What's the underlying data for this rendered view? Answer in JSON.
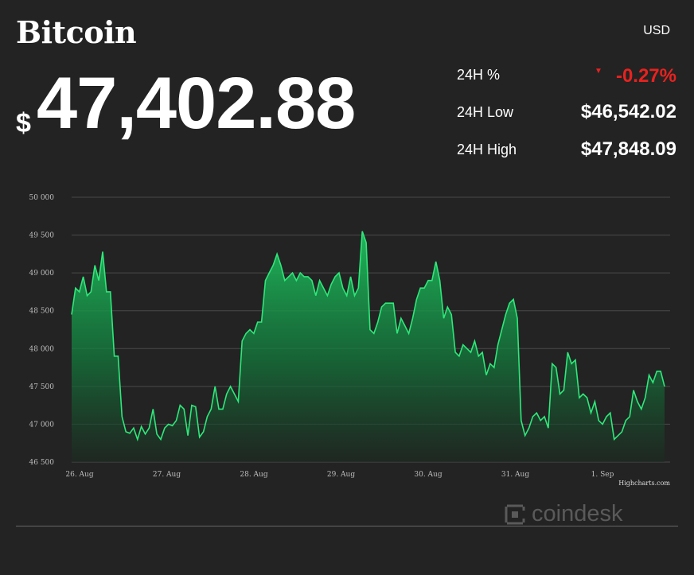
{
  "header": {
    "title": "Bitcoin",
    "currency": "USD",
    "dollar_sign": "$",
    "price": "47,402.88"
  },
  "stats": [
    {
      "label": "24H %",
      "value": "-0.27%",
      "trend": "down"
    },
    {
      "label": "24H Low",
      "value": "$46,542.02"
    },
    {
      "label": "24H High",
      "value": "$47,848.09"
    }
  ],
  "colors": {
    "background": "#232323",
    "line": "#2ee87a",
    "negative": "#e8221f"
  },
  "credit": "Highcharts.com",
  "brand": {
    "name": "coindesk",
    "icon": "coindesk-logo-icon"
  },
  "chart_data": {
    "type": "area",
    "ylim": [
      46500,
      50000
    ],
    "y_ticks": [
      "50 000",
      "49 500",
      "49 000",
      "48 500",
      "48 000",
      "47 500",
      "47 000",
      "46 500"
    ],
    "x_ticks": [
      "26. Aug",
      "27. Aug",
      "28. Aug",
      "29. Aug",
      "30. Aug",
      "31. Aug",
      "1. Sep"
    ],
    "series": [
      {
        "values": [
          48450,
          48800,
          48750,
          48950,
          48700,
          48750,
          49100,
          48900,
          49280,
          48750,
          48750,
          47900,
          47900,
          47100,
          46900,
          46880,
          46950,
          46800,
          46970,
          46870,
          46950,
          47200,
          46870,
          46800,
          46950,
          47000,
          46980,
          47050,
          47250,
          47200,
          46850,
          47250,
          47230,
          46830,
          46900,
          47100,
          47200,
          47500,
          47200,
          47200,
          47400,
          47500,
          47400,
          47300,
          48100,
          48200,
          48250,
          48200,
          48350,
          48350,
          48900,
          49000,
          49100,
          49250,
          49100,
          48900,
          48950,
          49000,
          48900,
          49000,
          48950,
          48950,
          48900,
          48700,
          48900,
          48800,
          48700,
          48850,
          48950,
          49000,
          48800,
          48700,
          48950,
          48700,
          48800,
          49550,
          49400,
          48250,
          48200,
          48350,
          48550,
          48600,
          48600,
          48600,
          48200,
          48400,
          48300,
          48200,
          48400,
          48650,
          48800,
          48800,
          48900,
          48900,
          49150,
          48900,
          48400,
          48550,
          48450,
          47950,
          47900,
          48050,
          48000,
          47950,
          48100,
          47900,
          47950,
          47650,
          47800,
          47750,
          48050,
          48250,
          48450,
          48600,
          48650,
          48400,
          47050,
          46850,
          46950,
          47100,
          47150,
          47050,
          47100,
          46950,
          47800,
          47750,
          47400,
          47450,
          47950,
          47800,
          47850,
          47350,
          47400,
          47350,
          47150,
          47300,
          47050,
          47000,
          47100,
          47150,
          46800,
          46850,
          46900,
          47050,
          47100,
          47450,
          47300,
          47200,
          47350,
          47650,
          47550,
          47700,
          47700,
          47500
        ]
      }
    ]
  }
}
